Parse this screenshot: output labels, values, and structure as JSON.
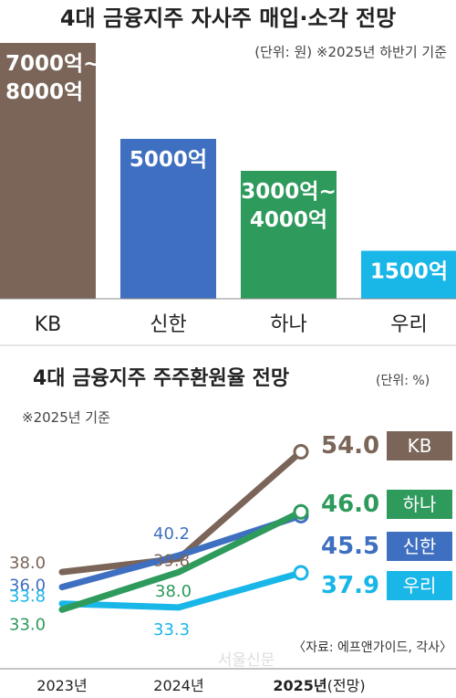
{
  "chart_data": [
    {
      "type": "bar",
      "title": "4대 금융지주 자사주 매입·소각 전망",
      "subtitle": "(단위: 원)  ※2025년 하반기 기준",
      "categories": [
        "KB",
        "신한",
        "하나",
        "우리"
      ],
      "values": [
        8000,
        5000,
        4000,
        1500
      ],
      "value_labels": [
        [
          "7000억~",
          "8000억"
        ],
        [
          "5000억"
        ],
        [
          "3000억~",
          "4000억"
        ],
        [
          "1500억"
        ]
      ],
      "colors": [
        "#7a6558",
        "#3f6fc0",
        "#2e9a5c",
        "#19b6e8"
      ],
      "ylim": [
        0,
        8000
      ]
    },
    {
      "type": "line",
      "title": "4대 금융지주 주주환원율 전망",
      "unit_note": "(단위: %)",
      "base_note": "※2025년 기준",
      "x": [
        "2023년",
        "2024년",
        "2025년"
      ],
      "x_suffix_last": "(전망)",
      "series": [
        {
          "name": "KB",
          "values": [
            38.0,
            39.8,
            54.0
          ],
          "labels": [
            "38.0",
            "39.8",
            "54.0"
          ],
          "color": "#7a6558"
        },
        {
          "name": "신한",
          "values": [
            36.0,
            40.2,
            45.5
          ],
          "labels": [
            "36.0",
            "40.2",
            "45.5"
          ],
          "color": "#3f6fc0"
        },
        {
          "name": "하나",
          "values": [
            33.0,
            38.0,
            46.0
          ],
          "labels": [
            "33.0",
            "38.0",
            "46.0"
          ],
          "color": "#2e9a5c"
        },
        {
          "name": "우리",
          "values": [
            33.8,
            33.3,
            37.9
          ],
          "labels": [
            "33.8",
            "33.3",
            "37.9"
          ],
          "color": "#19b6e8"
        }
      ],
      "source": "〈자료: 에프앤가이드, 각사〉",
      "ylim": [
        30,
        56
      ]
    }
  ],
  "watermark": "서울신문"
}
